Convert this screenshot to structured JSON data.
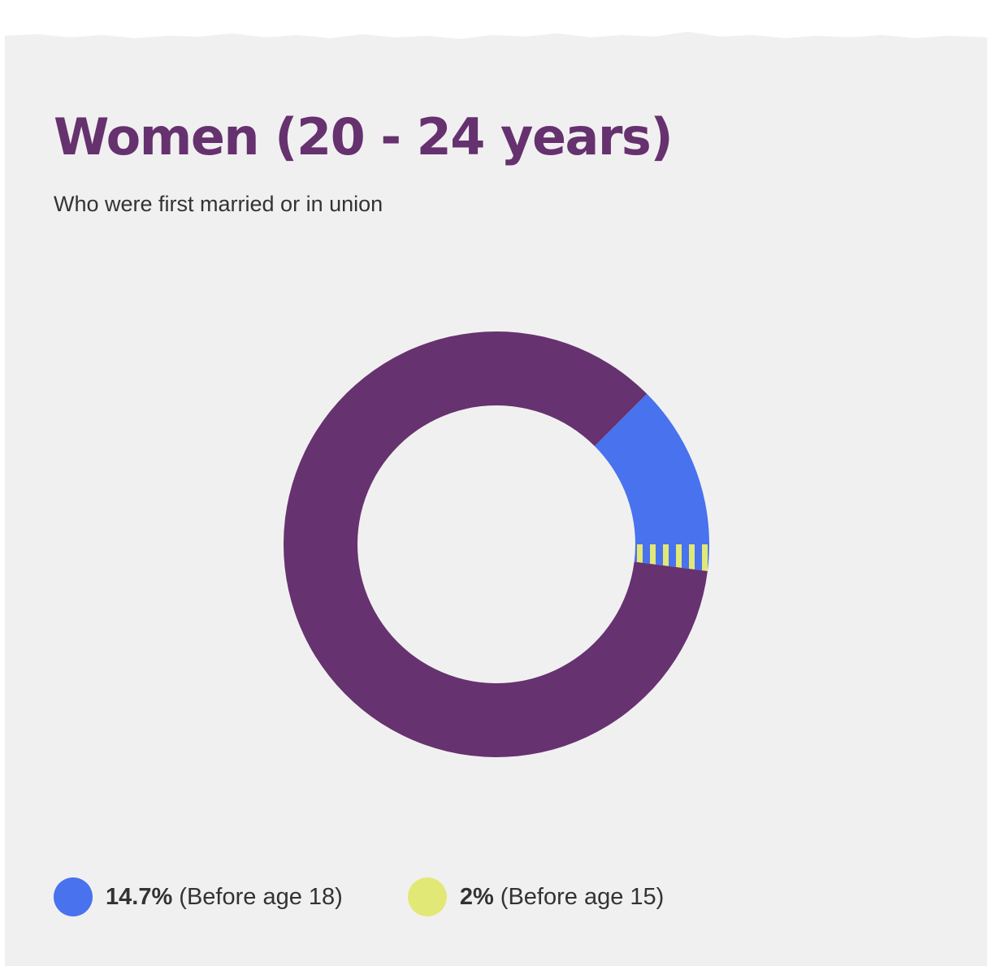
{
  "title": "Women (20 - 24 years)",
  "subtitle": "Who were first married or in union",
  "colors": {
    "background": "#f1f0f0",
    "remainder": "#66326f",
    "before_18": "#4872ee",
    "before_15": "#e2e876",
    "title": "#66316f",
    "text": "#333333"
  },
  "chart_data": {
    "type": "pie",
    "donut": true,
    "series": [
      {
        "name": "Before age 18",
        "value": 14.7,
        "label": "14.7%"
      },
      {
        "name": "Before age 15",
        "value": 2,
        "label": "2%",
        "pattern": "striped"
      }
    ],
    "legend": {
      "position": "bottom-left",
      "items": [
        {
          "value": "14.7%",
          "text": "(Before age 18)",
          "color": "#4872ee"
        },
        {
          "value": "2%",
          "text": "(Before age 15)",
          "color": "#e2e876"
        }
      ]
    }
  }
}
